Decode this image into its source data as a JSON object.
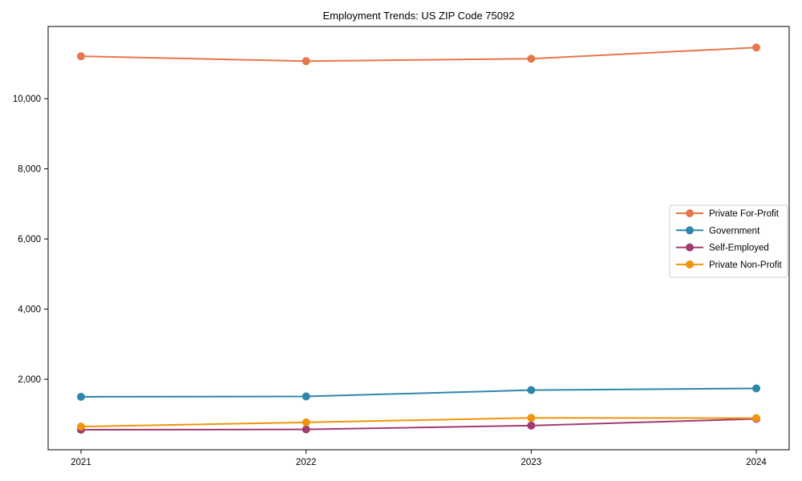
{
  "chart_data": {
    "type": "line",
    "title": "Employment Trends: US ZIP Code 75092",
    "categories": [
      "2021",
      "2022",
      "2023",
      "2024"
    ],
    "series": [
      {
        "name": "Private For-Profit",
        "color": "#E8764C",
        "values": [
          11210,
          11070,
          11140,
          11460
        ]
      },
      {
        "name": "Government",
        "color": "#2E86AB",
        "values": [
          1500,
          1510,
          1690,
          1740
        ]
      },
      {
        "name": "Self-Employed",
        "color": "#A23B72",
        "values": [
          560,
          570,
          680,
          870
        ]
      },
      {
        "name": "Private Non-Profit",
        "color": "#F0940C",
        "values": [
          650,
          770,
          900,
          890
        ]
      }
    ],
    "xlabel": "",
    "ylabel": "",
    "ylim": [
      -10,
      12060
    ],
    "yticks": [
      2000,
      4000,
      6000,
      8000,
      10000
    ],
    "ytick_labels": [
      "2,000",
      "4,000",
      "6,000",
      "8,000",
      "10,000"
    ],
    "grid": false,
    "legend_position": "center right",
    "marker": "circle",
    "line_width": 2,
    "marker_radius": 5,
    "spine_color": "#000000",
    "background_color": "#ffffff",
    "legend_border_color": "#cccccc"
  }
}
